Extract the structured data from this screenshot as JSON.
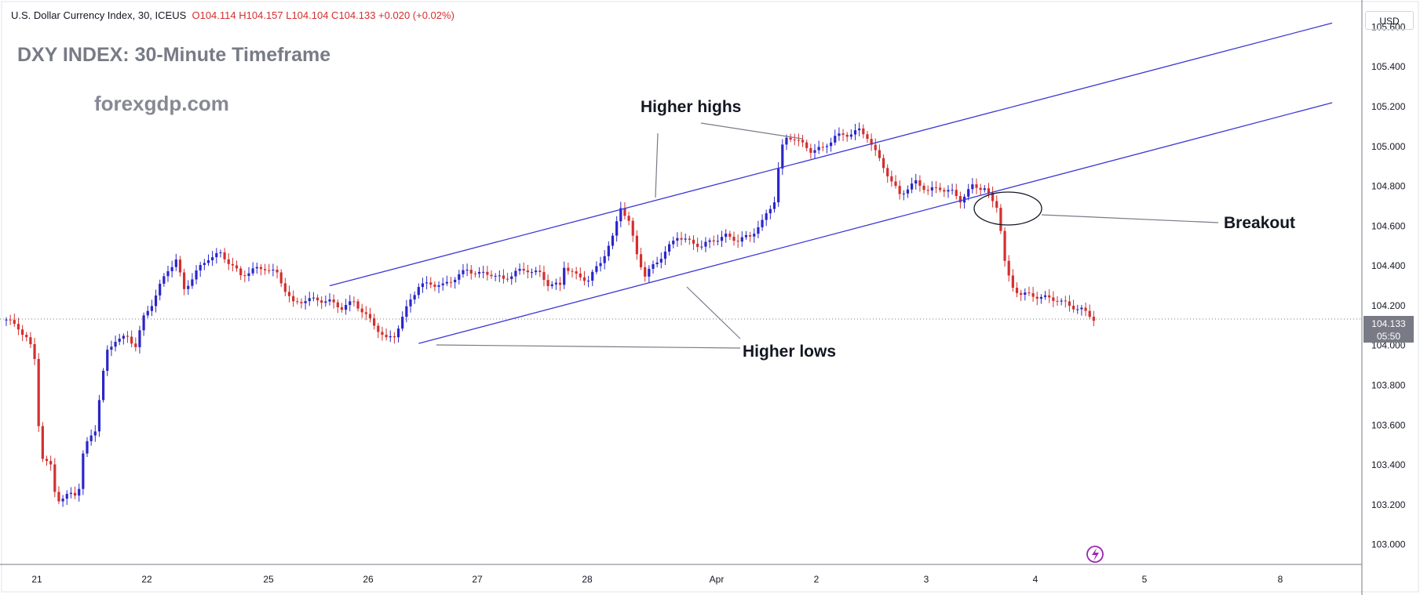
{
  "header": {
    "symbol": "U.S. Dollar Currency Index, 30, ICEUS",
    "ohlc": "O104.114  H104.157  L104.104  C104.133  +0.020 (+0.02%)"
  },
  "currency_label": "USD",
  "last_price": {
    "value": "104.133",
    "countdown": "05:50"
  },
  "colors": {
    "up": "#2a26c9",
    "down": "#d32f2f",
    "channel": "#3b38d6",
    "grid": "#d1d4dc"
  },
  "chart_data": {
    "type": "candlestick",
    "title": "DXY INDEX: 30-Minute Timeframe",
    "subtitle": "forexgdp.com",
    "ylim": [
      102.9,
      105.72
    ],
    "y_ticks": [
      "105.600",
      "105.400",
      "105.200",
      "105.000",
      "104.800",
      "104.600",
      "104.400",
      "104.200",
      "104.000",
      "103.800",
      "103.600",
      "103.400",
      "103.200",
      "103.000"
    ],
    "x_ticks": [
      "21",
      "22",
      "25",
      "26",
      "27",
      "28",
      "Apr",
      "2",
      "3",
      "4",
      "5",
      "8"
    ],
    "price_path": [
      [
        0.0,
        104.13
      ],
      [
        1.5,
        104.09
      ],
      [
        2.8,
        104.02
      ],
      [
        3.6,
        103.92
      ],
      [
        4.2,
        103.45
      ],
      [
        5.0,
        103.41
      ],
      [
        5.6,
        103.39
      ],
      [
        6.0,
        103.27
      ],
      [
        6.6,
        103.22
      ],
      [
        7.4,
        103.24
      ],
      [
        8.2,
        103.26
      ],
      [
        8.9,
        103.25
      ],
      [
        9.4,
        103.44
      ],
      [
        10.2,
        103.53
      ],
      [
        11.0,
        103.58
      ],
      [
        11.8,
        103.82
      ],
      [
        12.5,
        103.97
      ],
      [
        13.5,
        104.03
      ],
      [
        15.0,
        104.04
      ],
      [
        16.0,
        104.0
      ],
      [
        17.0,
        104.14
      ],
      [
        18.0,
        104.21
      ],
      [
        19.0,
        104.3
      ],
      [
        20.0,
        104.38
      ],
      [
        21.0,
        104.43
      ],
      [
        22.0,
        104.28
      ],
      [
        23.5,
        104.37
      ],
      [
        25.0,
        104.44
      ],
      [
        26.5,
        104.46
      ],
      [
        28.0,
        104.4
      ],
      [
        29.0,
        104.35
      ],
      [
        30.5,
        104.38
      ],
      [
        32.0,
        104.39
      ],
      [
        33.5,
        104.36
      ],
      [
        34.5,
        104.28
      ],
      [
        35.5,
        104.21
      ],
      [
        37.0,
        104.23
      ],
      [
        38.5,
        104.23
      ],
      [
        40.0,
        104.22
      ],
      [
        41.5,
        104.19
      ],
      [
        43.0,
        104.22
      ],
      [
        44.5,
        104.15
      ],
      [
        46.0,
        104.08
      ],
      [
        47.0,
        104.03
      ],
      [
        48.0,
        104.05
      ],
      [
        49.0,
        104.14
      ],
      [
        50.0,
        104.23
      ],
      [
        51.0,
        104.3
      ],
      [
        52.5,
        104.31
      ],
      [
        54.0,
        104.3
      ],
      [
        55.5,
        104.34
      ],
      [
        57.0,
        104.38
      ],
      [
        58.5,
        104.36
      ],
      [
        60.0,
        104.36
      ],
      [
        61.5,
        104.33
      ],
      [
        63.0,
        104.37
      ],
      [
        64.5,
        104.38
      ],
      [
        66.0,
        104.36
      ],
      [
        67.0,
        104.31
      ],
      [
        68.5,
        104.3
      ],
      [
        69.0,
        104.4
      ],
      [
        70.5,
        104.35
      ],
      [
        72.0,
        104.33
      ],
      [
        73.5,
        104.42
      ],
      [
        75.0,
        104.54
      ],
      [
        76.0,
        104.7
      ],
      [
        77.0,
        104.62
      ],
      [
        78.0,
        104.46
      ],
      [
        79.0,
        104.35
      ],
      [
        80.0,
        104.4
      ],
      [
        81.5,
        104.47
      ],
      [
        83.0,
        104.55
      ],
      [
        84.5,
        104.52
      ],
      [
        86.0,
        104.5
      ],
      [
        87.5,
        104.53
      ],
      [
        89.0,
        104.55
      ],
      [
        90.5,
        104.53
      ],
      [
        92.0,
        104.55
      ],
      [
        93.5,
        104.62
      ],
      [
        95.0,
        104.73
      ],
      [
        95.8,
        104.98
      ],
      [
        96.6,
        105.05
      ],
      [
        97.5,
        105.04
      ],
      [
        98.5,
        105.01
      ],
      [
        99.5,
        104.98
      ],
      [
        101.0,
        104.99
      ],
      [
        102.5,
        105.05
      ],
      [
        104.0,
        105.06
      ],
      [
        105.5,
        105.08
      ],
      [
        106.5,
        105.05
      ],
      [
        107.5,
        104.97
      ],
      [
        108.5,
        104.9
      ],
      [
        109.5,
        104.82
      ],
      [
        110.5,
        104.76
      ],
      [
        111.5,
        104.79
      ],
      [
        112.5,
        104.82
      ],
      [
        114.0,
        104.78
      ],
      [
        115.5,
        104.79
      ],
      [
        117.0,
        104.77
      ],
      [
        118.0,
        104.73
      ],
      [
        119.5,
        104.8
      ],
      [
        121.0,
        104.79
      ],
      [
        122.0,
        104.72
      ],
      [
        122.8,
        104.69
      ],
      [
        123.2,
        104.48
      ],
      [
        123.8,
        104.36
      ],
      [
        124.5,
        104.29
      ],
      [
        125.5,
        104.26
      ],
      [
        127.0,
        104.25
      ],
      [
        128.5,
        104.24
      ],
      [
        130.0,
        104.23
      ],
      [
        131.5,
        104.2
      ],
      [
        133.0,
        104.18
      ],
      [
        134.0,
        104.15
      ],
      [
        134.7,
        104.13
      ]
    ],
    "channel": {
      "upper": {
        "from": [
          40.0,
          104.3
        ],
        "to": [
          164.0,
          105.62
        ]
      },
      "lower": {
        "from": [
          51.0,
          104.01
        ],
        "to": [
          164.0,
          105.22
        ]
      }
    },
    "annotations": [
      {
        "text": "Higher highs"
      },
      {
        "text": "Higher lows"
      },
      {
        "text": "Breakout"
      }
    ]
  }
}
